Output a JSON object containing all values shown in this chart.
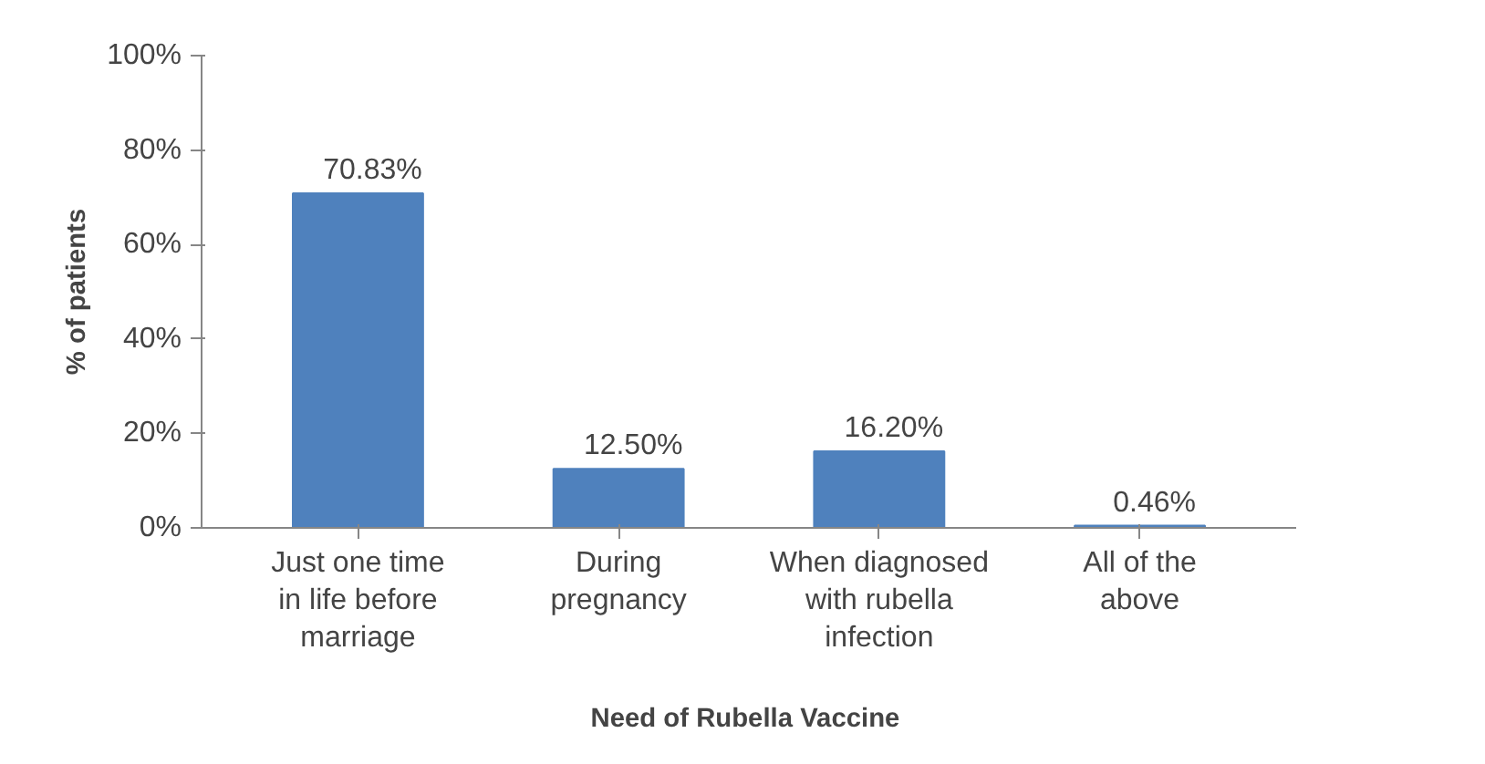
{
  "chart_data": {
    "type": "bar",
    "xlabel": "Need of  Rubella Vaccine",
    "ylabel": "% of patients",
    "categories": [
      "Just one time in life before marriage",
      "During pregnancy",
      "When diagnosed with rubella infection",
      "All of the above"
    ],
    "values": [
      70.83,
      12.5,
      16.2,
      0.46
    ],
    "value_labels": [
      "70.83%",
      "12.50%",
      "16.20%",
      "0.46%"
    ],
    "color": "#4f81bd",
    "ylim": [
      0,
      100
    ],
    "yticks": [
      {
        "value": 0,
        "label": "0%"
      },
      {
        "value": 20,
        "label": "20%"
      },
      {
        "value": 40,
        "label": "40%"
      },
      {
        "value": 60,
        "label": "60%"
      },
      {
        "value": 80,
        "label": "80%"
      },
      {
        "value": 100,
        "label": "100%"
      }
    ],
    "grid": false
  }
}
